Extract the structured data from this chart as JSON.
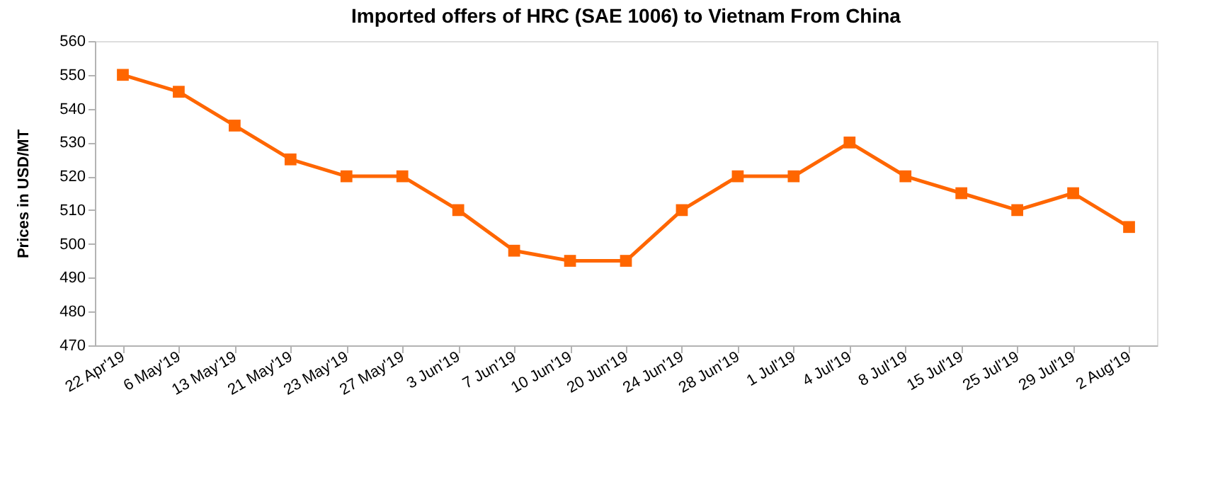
{
  "chart_data": {
    "type": "line",
    "title": "Imported offers of HRC (SAE 1006) to Vietnam From China",
    "ylabel": "Prices in USD/MT",
    "categories": [
      "22 Apr'19",
      "6 May'19",
      "13 May'19",
      "21 May'19",
      "23 May'19",
      "27 May'19",
      "3 Jun'19",
      "7 Jun'19",
      "10 Jun'19",
      "20 Jun'19",
      "24 Jun'19",
      "28 Jun'19",
      "1 Jul'19",
      "4 Jul'19",
      "8 Jul'19",
      "15 Jul'19",
      "25 Jul'19",
      "29 Jul'19",
      "2 Aug'19"
    ],
    "series": [
      {
        "color": "#ff6600",
        "values": [
          550,
          545,
          535,
          525,
          520,
          520,
          510,
          498,
          495,
          495,
          510,
          520,
          520,
          530,
          520,
          515,
          510,
          515,
          505
        ]
      }
    ],
    "ylim": [
      470,
      560
    ],
    "yticks": [
      470,
      480,
      490,
      500,
      510,
      520,
      530,
      540,
      550,
      560
    ],
    "marker": "square",
    "line_style": "solid",
    "grid": false
  }
}
